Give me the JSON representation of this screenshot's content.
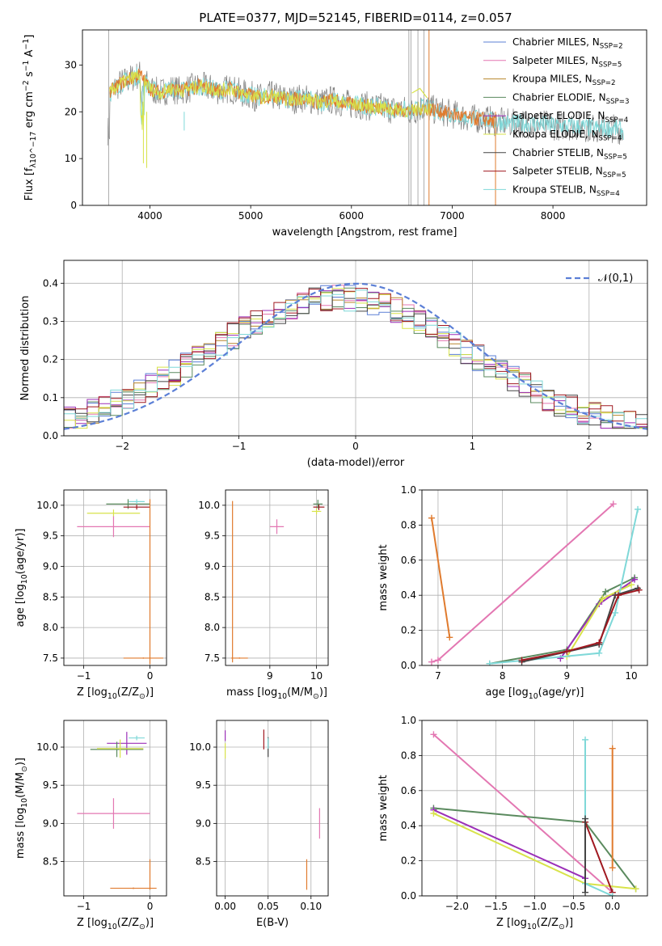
{
  "figure": {
    "title": "PLATE=0377, MJD=52145, FIBERID=0114, z=0.057"
  },
  "colors": {
    "Chabrier MILES": "#5b7fd6",
    "Salpeter MILES": "#e377b2",
    "Kroupa MILES": "#b8862b",
    "Chabrier ELODIE": "#5a8a5e",
    "Salpeter ELODIE": "#9b2fb8",
    "Kroupa ELODIE": "#d8e34a",
    "Chabrier STELIB": "#444444",
    "Salpeter STELIB": "#a01820",
    "Kroupa STELIB": "#7fd8d8",
    "orange": "#e07b2e",
    "gray": "#7f7f7f"
  },
  "chart_data": [
    {
      "id": "spectrum",
      "type": "line",
      "xlabel": "wavelength [Angstrom, rest frame]",
      "ylabel": "Flux [f_λ10^-17 erg cm^-2 s^-1 A^-1]",
      "xlim": [
        3330,
        8930
      ],
      "ylim": [
        0,
        37.5
      ],
      "xticks": [
        4000,
        5000,
        6000,
        7000,
        8000
      ],
      "yticks": [
        0,
        10,
        20,
        30
      ],
      "legend": [
        "Chabrier MILES, N_SSP=2",
        "Salpeter MILES, N_SSP=5",
        "Kroupa MILES, N_SSP=2",
        "Chabrier ELODIE, N_SSP=3",
        "Salpeter ELODIE, N_SSP=4",
        "Kroupa ELODIE, N_SSP=4",
        "Chabrier STELIB, N_SSP=5",
        "Salpeter STELIB, N_SSP=5",
        "Kroupa STELIB, N_SSP=4"
      ],
      "legend_location": "upper right",
      "series": [
        {
          "x": [
            3600,
            3700,
            3800,
            3900,
            4000,
            4100,
            4200,
            4300,
            4400,
            4500,
            4600,
            4700,
            4800,
            4900,
            5000,
            5100,
            5200,
            5300,
            5400,
            5500,
            5600,
            5700,
            5800,
            5900,
            6000,
            6100,
            6200,
            6300,
            6400,
            6500,
            6600,
            6700,
            6800,
            6900,
            7000,
            7100,
            7200,
            7300,
            7400,
            7600,
            7800,
            8000,
            8200,
            8400,
            8600,
            8700
          ],
          "y": [
            24,
            26,
            27,
            28,
            25,
            24,
            25,
            24.5,
            25,
            25.5,
            25,
            24.5,
            25,
            24,
            23.5,
            23,
            23.5,
            23,
            22.5,
            23,
            22.5,
            22,
            22.5,
            22,
            21.5,
            21.5,
            21,
            21,
            20.5,
            20.5,
            20,
            21,
            20.5,
            20,
            19.5,
            19,
            18.5,
            18.5,
            18,
            17.5,
            17.5,
            17,
            17,
            16.5,
            16.5,
            16
          ]
        }
      ]
    },
    {
      "id": "residuals",
      "type": "line",
      "xlabel": "(data-model)/error",
      "ylabel": "Normed distribution",
      "xlim": [
        -2.5,
        2.5
      ],
      "ylim": [
        0,
        0.46
      ],
      "xticks": [
        -2,
        -1,
        0,
        1,
        2
      ],
      "yticks": [
        0.0,
        0.1,
        0.2,
        0.3,
        0.4
      ],
      "legend": [
        "𝒩(0,1)"
      ],
      "legend_location": "upper right",
      "bins": {
        "start": -2.5,
        "width": 0.1,
        "count": 50
      }
    },
    {
      "id": "age_vs_Z",
      "type": "scatter",
      "xlabel": "Z [log10(Z/Z⊙)]",
      "ylabel": "age [log10(age/yr)]",
      "xlim": [
        -1.3,
        0.25
      ],
      "ylim": [
        7.38,
        10.25
      ],
      "xticks": [
        -1,
        0
      ],
      "yticks": [
        7.5,
        8.0,
        8.5,
        9.0,
        9.5,
        10.0
      ],
      "points": [
        {
          "x": -0.33,
          "y": 10.02,
          "xerr": 0.33,
          "yerr": 0.08,
          "s": "Chabrier ELODIE"
        },
        {
          "x": -0.55,
          "y": 9.87,
          "xerr": 0.4,
          "yerr": 0.06,
          "s": "Kroupa ELODIE"
        },
        {
          "x": -0.2,
          "y": 9.97,
          "xerr": 0.2,
          "yerr": 0.04,
          "s": "Salpeter STELIB"
        },
        {
          "x": -0.55,
          "y": 9.65,
          "xerr": 0.55,
          "yerr": 0.17,
          "s": "Salpeter MILES"
        },
        {
          "x": -0.2,
          "y": 10.06,
          "xerr": 0.12,
          "yerr": 0.04,
          "s": "Kroupa STELIB"
        },
        {
          "x": -0.1,
          "y": 7.5,
          "xerr": 0.3,
          "yerr": 0.01,
          "s": "orange"
        },
        {
          "x": 0.0,
          "y": 8.75,
          "xerr": 0.0,
          "yerr": 1.35,
          "s": "orange"
        }
      ]
    },
    {
      "id": "age_vs_mass",
      "type": "scatter",
      "xlabel": "mass [log10(M/M⊙)]",
      "ylabel": "",
      "xlim": [
        8.05,
        10.25
      ],
      "ylim": [
        7.38,
        10.25
      ],
      "xticks": [
        9,
        10
      ],
      "yticks": [
        7.5,
        8.0,
        8.5,
        9.0,
        9.5,
        10.0
      ],
      "points": [
        {
          "x": 9.15,
          "y": 9.65,
          "xerr": 0.15,
          "yerr": 0.12,
          "s": "Salpeter MILES"
        },
        {
          "x": 10.05,
          "y": 9.97,
          "xerr": 0.12,
          "yerr": 0.05,
          "s": "Salpeter STELIB"
        },
        {
          "x": 10.03,
          "y": 10.02,
          "xerr": 0.1,
          "yerr": 0.07,
          "s": "Chabrier ELODIE"
        },
        {
          "x": 10.0,
          "y": 9.9,
          "xerr": 0.1,
          "yerr": 0.05,
          "s": "Kroupa ELODIE"
        },
        {
          "x": 8.2,
          "y": 8.75,
          "xerr": 0.0,
          "yerr": 1.32,
          "s": "orange"
        },
        {
          "x": 8.35,
          "y": 7.5,
          "xerr": 0.18,
          "yerr": 0.01,
          "s": "orange"
        }
      ]
    },
    {
      "id": "mass_weight_vs_age",
      "type": "line",
      "xlabel": "age [log10(age/yr)]",
      "ylabel": "mass weight",
      "xlim": [
        6.75,
        10.25
      ],
      "ylim": [
        0,
        1.0
      ],
      "xticks": [
        7,
        8,
        9,
        10
      ],
      "yticks": [
        0.0,
        0.2,
        0.4,
        0.6,
        0.8,
        1.0
      ],
      "series": [
        {
          "s": "orange",
          "x": [
            6.9,
            7.18
          ],
          "y": [
            0.84,
            0.16
          ]
        },
        {
          "s": "Salpeter MILES",
          "x": [
            6.9,
            7.0,
            9.72
          ],
          "y": [
            0.02,
            0.03,
            0.92
          ]
        },
        {
          "s": "Chabrier ELODIE",
          "x": [
            7.8,
            9.0,
            9.6,
            10.05
          ],
          "y": [
            0.01,
            0.09,
            0.42,
            0.5
          ]
        },
        {
          "s": "Salpeter ELODIE",
          "x": [
            8.9,
            9.5,
            10.05
          ],
          "y": [
            0.04,
            0.35,
            0.49
          ]
        },
        {
          "s": "Kroupa ELODIE",
          "x": [
            9.0,
            9.55,
            10.0
          ],
          "y": [
            0.05,
            0.38,
            0.46
          ]
        },
        {
          "s": "Kroupa STELIB",
          "x": [
            7.8,
            9.5,
            9.75,
            10.1
          ],
          "y": [
            0.01,
            0.07,
            0.3,
            0.89
          ]
        },
        {
          "s": "Chabrier STELIB",
          "x": [
            8.3,
            9.5,
            9.75,
            10.1
          ],
          "y": [
            0.02,
            0.12,
            0.4,
            0.44
          ]
        },
        {
          "s": "Salpeter STELIB",
          "x": [
            8.3,
            9.0,
            9.5,
            9.8,
            10.12
          ],
          "y": [
            0.03,
            0.08,
            0.13,
            0.4,
            0.43
          ]
        }
      ]
    },
    {
      "id": "mass_vs_Z",
      "type": "scatter",
      "xlabel": "Z [log10(Z/Z⊙)]",
      "ylabel": "mass [log10(M/M⊙)]",
      "xlim": [
        -1.3,
        0.25
      ],
      "ylim": [
        8.05,
        10.35
      ],
      "xticks": [
        -1,
        0
      ],
      "yticks": [
        8.5,
        9.0,
        9.5,
        10.0
      ],
      "points": [
        {
          "x": -0.55,
          "y": 9.13,
          "xerr": 0.55,
          "yerr": 0.2,
          "s": "Salpeter MILES"
        },
        {
          "x": -0.35,
          "y": 10.05,
          "xerr": 0.3,
          "yerr": 0.15,
          "s": "Salpeter ELODIE"
        },
        {
          "x": -0.5,
          "y": 9.97,
          "xerr": 0.4,
          "yerr": 0.1,
          "s": "Chabrier ELODIE"
        },
        {
          "x": -0.45,
          "y": 9.98,
          "xerr": 0.35,
          "yerr": 0.12,
          "s": "Kroupa ELODIE"
        },
        {
          "x": -0.2,
          "y": 10.12,
          "xerr": 0.12,
          "yerr": 0.03,
          "s": "Kroupa STELIB"
        },
        {
          "x": -0.25,
          "y": 8.15,
          "xerr": 0.35,
          "yerr": 0.01,
          "s": "orange"
        },
        {
          "x": 0.0,
          "y": 8.33,
          "xerr": 0.0,
          "yerr": 0.2,
          "s": "orange"
        }
      ]
    },
    {
      "id": "mass_vs_ebv",
      "type": "scatter",
      "xlabel": "E(B-V)",
      "ylabel": "",
      "xlim": [
        -0.01,
        0.12
      ],
      "ylim": [
        8.05,
        10.35
      ],
      "xticks": [
        0.0,
        0.05,
        0.1
      ],
      "xticklabels": [
        "0.00",
        "0.05",
        "0.10"
      ],
      "yticks": [
        8.5,
        9.0,
        9.5,
        10.0
      ],
      "points": [
        {
          "x": 0.0,
          "y": 10.15,
          "xerr": 0,
          "yerr": 0.07,
          "s": "Salpeter ELODIE"
        },
        {
          "x": 0.0,
          "y": 9.95,
          "xerr": 0,
          "yerr": 0.1,
          "s": "Kroupa ELODIE"
        },
        {
          "x": 0.045,
          "y": 10.1,
          "xerr": 0,
          "yerr": 0.13,
          "s": "Salpeter STELIB"
        },
        {
          "x": 0.05,
          "y": 10.0,
          "xerr": 0,
          "yerr": 0.13,
          "s": "Chabrier STELIB"
        },
        {
          "x": 0.05,
          "y": 10.05,
          "xerr": 0,
          "yerr": 0.07,
          "s": "Kroupa STELIB"
        },
        {
          "x": 0.095,
          "y": 8.33,
          "xerr": 0,
          "yerr": 0.2,
          "s": "orange"
        },
        {
          "x": 0.11,
          "y": 9.0,
          "xerr": 0,
          "yerr": 0.2,
          "s": "Salpeter MILES"
        }
      ]
    },
    {
      "id": "mass_weight_vs_Z",
      "type": "line",
      "xlabel": "Z [log10(Z/Z⊙)]",
      "ylabel": "mass weight",
      "xlim": [
        -2.45,
        0.45
      ],
      "ylim": [
        0,
        1.0
      ],
      "xticks": [
        -2.0,
        -1.5,
        -1.0,
        -0.5,
        0.0
      ],
      "xticklabels": [
        "−2.0",
        "−1.5",
        "−1.0",
        "−0.5",
        "0.0"
      ],
      "yticks": [
        0.0,
        0.2,
        0.4,
        0.6,
        0.8,
        1.0
      ],
      "series": [
        {
          "s": "Salpeter MILES",
          "x": [
            -2.3,
            0.0
          ],
          "y": [
            0.92,
            0.02
          ]
        },
        {
          "s": "Chabrier ELODIE",
          "x": [
            -2.3,
            -0.35,
            0.3
          ],
          "y": [
            0.5,
            0.42,
            0.04
          ]
        },
        {
          "s": "Salpeter ELODIE",
          "x": [
            -2.3,
            -0.35
          ],
          "y": [
            0.49,
            0.1
          ]
        },
        {
          "s": "Kroupa ELODIE",
          "x": [
            -2.3,
            -0.35,
            0.3
          ],
          "y": [
            0.47,
            0.07,
            0.04
          ]
        },
        {
          "s": "Salpeter STELIB",
          "x": [
            -0.35,
            0.0
          ],
          "y": [
            0.42,
            0.02
          ]
        },
        {
          "s": "Kroupa STELIB",
          "x": [
            -0.35,
            -0.35,
            0.0
          ],
          "y": [
            0.89,
            0.07,
            0.0
          ]
        },
        {
          "s": "Chabrier STELIB",
          "x": [
            -0.35,
            -0.35
          ],
          "y": [
            0.44,
            0.02
          ]
        },
        {
          "s": "orange",
          "x": [
            0.0,
            0.0
          ],
          "y": [
            0.84,
            0.16
          ]
        }
      ]
    }
  ]
}
